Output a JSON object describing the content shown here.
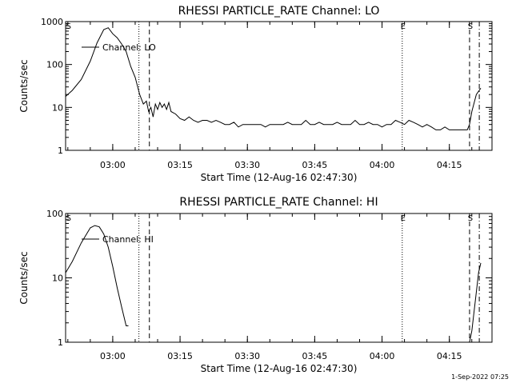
{
  "footer_timestamp": "1-Sep-2022 07:25",
  "chart_data": [
    {
      "type": "line",
      "title": "RHESSI PARTICLE_RATE Channel: LO",
      "xlabel": "Start Time (12-Aug-16 02:47:30)",
      "ylabel": "Counts/sec",
      "y_scale": "log",
      "xlim": [
        "02:49:30",
        "04:24:30"
      ],
      "ylim": [
        1,
        1000
      ],
      "x_ticks": [
        "03:00",
        "03:15",
        "03:30",
        "03:45",
        "04:00",
        "04:15"
      ],
      "y_ticks": [
        "1",
        "10",
        "100",
        "1000"
      ],
      "legend": "upper-left",
      "markers": [
        {
          "label": "S",
          "time": "02:50:00",
          "style": "none"
        },
        {
          "label": "",
          "time": "03:05:50",
          "style": "dotted"
        },
        {
          "label": "",
          "time": "03:08:10",
          "style": "dashed"
        },
        {
          "label": "E",
          "time": "04:04:30",
          "style": "dotted"
        },
        {
          "label": "S",
          "time": "04:19:30",
          "style": "dashed"
        },
        {
          "label": "",
          "time": "04:21:40",
          "style": "dashdot"
        }
      ],
      "series": [
        {
          "name": "Channel: LO",
          "x": [
            "02:49:30",
            "02:51:00",
            "02:53:00",
            "02:55:00",
            "02:56:30",
            "02:58:00",
            "02:59:00",
            "03:00:00",
            "03:01:00",
            "03:02:00",
            "03:03:00",
            "03:04:00",
            "03:05:00",
            "03:06:00",
            "03:06:50",
            "03:07:30",
            "03:08:00",
            "03:08:30",
            "03:09:00",
            "03:09:30",
            "03:10:00",
            "03:10:30",
            "03:11:00",
            "03:11:30",
            "03:12:00",
            "03:12:30",
            "03:13:00",
            "03:14:00",
            "03:15:00",
            "03:16:00",
            "03:17:00",
            "03:18:00",
            "03:19:00",
            "03:20:00",
            "03:21:00",
            "03:22:00",
            "03:23:00",
            "03:24:00",
            "03:25:00",
            "03:26:00",
            "03:27:00",
            "03:28:00",
            "03:29:00",
            "03:30:00",
            "03:31:00",
            "03:32:00",
            "03:33:00",
            "03:34:00",
            "03:35:00",
            "03:36:00",
            "03:37:00",
            "03:38:00",
            "03:39:00",
            "03:40:00",
            "03:41:00",
            "03:42:00",
            "03:43:00",
            "03:44:00",
            "03:45:00",
            "03:46:00",
            "03:47:00",
            "03:48:00",
            "03:49:00",
            "03:50:00",
            "03:51:00",
            "03:52:00",
            "03:53:00",
            "03:54:00",
            "03:55:00",
            "03:56:00",
            "03:57:00",
            "03:58:00",
            "03:59:00",
            "04:00:00",
            "04:01:00",
            "04:02:00",
            "04:03:00",
            "04:04:00",
            "04:05:00",
            "04:06:00",
            "04:07:00",
            "04:08:00",
            "04:09:00",
            "04:10:00",
            "04:11:00",
            "04:12:00",
            "04:13:00",
            "04:14:00",
            "04:15:00",
            "04:16:00",
            "04:17:00",
            "04:18:00",
            "04:19:00",
            "04:19:30",
            "04:20:00",
            "04:21:00",
            "04:22:00"
          ],
          "y": [
            18,
            25,
            45,
            120,
            320,
            650,
            720,
            520,
            420,
            300,
            200,
            90,
            50,
            20,
            12,
            14,
            8,
            10,
            6,
            12,
            9,
            13,
            10,
            12,
            9,
            13,
            8,
            7,
            5.5,
            5,
            6,
            5,
            4.5,
            5,
            5,
            4.5,
            5,
            4.5,
            4,
            4,
            4.5,
            3.5,
            4,
            4,
            4,
            4,
            4,
            3.5,
            4,
            4,
            4,
            4,
            4.5,
            4,
            4,
            4,
            5,
            4,
            4,
            4.5,
            4,
            4,
            4,
            4.5,
            4,
            4,
            4,
            5,
            4,
            4,
            4.5,
            4,
            4,
            3.5,
            4,
            4,
            5,
            4.5,
            4,
            5,
            4.5,
            4,
            3.5,
            4,
            3.5,
            3,
            3,
            3.5,
            3,
            3,
            3,
            3,
            3,
            4,
            8,
            20,
            28
          ]
        }
      ]
    },
    {
      "type": "line",
      "title": "RHESSI PARTICLE_RATE Channel: HI",
      "xlabel": "Start Time (12-Aug-16 02:47:30)",
      "ylabel": "Counts/sec",
      "y_scale": "log",
      "xlim": [
        "02:49:30",
        "04:24:30"
      ],
      "ylim": [
        1,
        100
      ],
      "x_ticks": [
        "03:00",
        "03:15",
        "03:30",
        "03:45",
        "04:00",
        "04:15"
      ],
      "y_ticks": [
        "1",
        "10",
        "100"
      ],
      "legend": "upper-left",
      "markers": [
        {
          "label": "S",
          "time": "02:50:00",
          "style": "none"
        },
        {
          "label": "",
          "time": "03:05:50",
          "style": "dotted"
        },
        {
          "label": "",
          "time": "03:08:10",
          "style": "dashed"
        },
        {
          "label": "E",
          "time": "04:04:30",
          "style": "dotted"
        },
        {
          "label": "S",
          "time": "04:19:30",
          "style": "dashed"
        },
        {
          "label": "",
          "time": "04:21:40",
          "style": "dashdot"
        }
      ],
      "series": [
        {
          "name": "Channel: HI",
          "x": [
            "02:49:30",
            "02:51:00",
            "02:53:00",
            "02:55:00",
            "02:56:00",
            "02:57:00",
            "02:58:00",
            "02:59:00",
            "03:00:00",
            "03:01:00",
            "03:02:00",
            "03:03:00",
            "03:03:30"
          ],
          "y": [
            12,
            18,
            35,
            60,
            65,
            62,
            48,
            30,
            15,
            7,
            3.5,
            1.8,
            1.8
          ]
        },
        {
          "name": "",
          "x": [
            "04:19:30",
            "04:20:00",
            "04:20:30",
            "04:21:00",
            "04:21:30",
            "04:22:00"
          ],
          "y": [
            1,
            1.5,
            3,
            6,
            12,
            17
          ]
        }
      ]
    }
  ]
}
